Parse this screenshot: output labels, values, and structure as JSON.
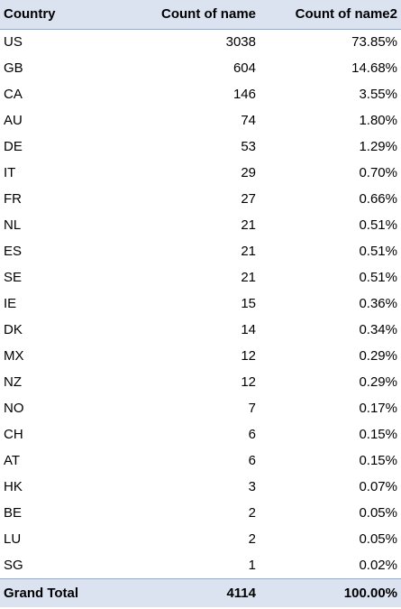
{
  "header": {
    "country": "Country",
    "count_of_name": "Count of name",
    "count_of_name2": "Count of name2"
  },
  "rows": [
    {
      "country": "US",
      "count": "3038",
      "percent": "73.85%"
    },
    {
      "country": "GB",
      "count": "604",
      "percent": "14.68%"
    },
    {
      "country": "CA",
      "count": "146",
      "percent": "3.55%"
    },
    {
      "country": "AU",
      "count": "74",
      "percent": "1.80%"
    },
    {
      "country": "DE",
      "count": "53",
      "percent": "1.29%"
    },
    {
      "country": "IT",
      "count": "29",
      "percent": "0.70%"
    },
    {
      "country": "FR",
      "count": "27",
      "percent": "0.66%"
    },
    {
      "country": "NL",
      "count": "21",
      "percent": "0.51%"
    },
    {
      "country": "ES",
      "count": "21",
      "percent": "0.51%"
    },
    {
      "country": "SE",
      "count": "21",
      "percent": "0.51%"
    },
    {
      "country": "IE",
      "count": "15",
      "percent": "0.36%"
    },
    {
      "country": "DK",
      "count": "14",
      "percent": "0.34%"
    },
    {
      "country": "MX",
      "count": "12",
      "percent": "0.29%"
    },
    {
      "country": "NZ",
      "count": "12",
      "percent": "0.29%"
    },
    {
      "country": "NO",
      "count": "7",
      "percent": "0.17%"
    },
    {
      "country": "CH",
      "count": "6",
      "percent": "0.15%"
    },
    {
      "country": "AT",
      "count": "6",
      "percent": "0.15%"
    },
    {
      "country": "HK",
      "count": "3",
      "percent": "0.07%"
    },
    {
      "country": "BE",
      "count": "2",
      "percent": "0.05%"
    },
    {
      "country": "LU",
      "count": "2",
      "percent": "0.05%"
    },
    {
      "country": "SG",
      "count": "1",
      "percent": "0.02%"
    }
  ],
  "total": {
    "label": "Grand Total",
    "count": "4114",
    "percent": "100.00%"
  },
  "colors": {
    "header_background": "#dbe3f1",
    "header_border": "#8ea9db"
  }
}
